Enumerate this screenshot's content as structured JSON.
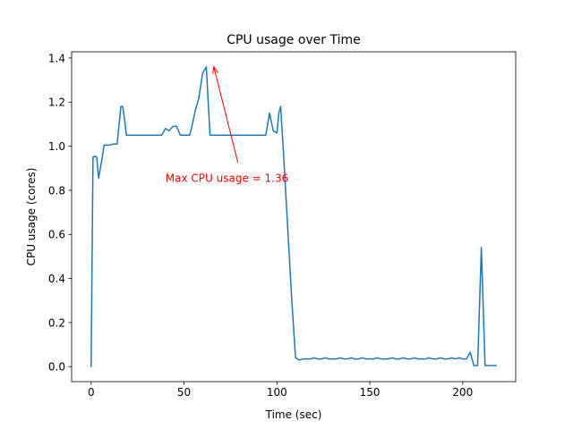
{
  "chart_data": {
    "type": "line",
    "title": "CPU usage over Time",
    "xlabel": "Time (sec)",
    "ylabel": "CPU usage (cores)",
    "xlim": [
      -10.5,
      228.5
    ],
    "ylim": [
      -0.068,
      1.428
    ],
    "xticks": [
      0,
      50,
      100,
      150,
      200
    ],
    "yticks": [
      0.0,
      0.2,
      0.4,
      0.6,
      0.8,
      1.0,
      1.2,
      1.4
    ],
    "ytick_labels": [
      "0.0",
      "0.2",
      "0.4",
      "0.6",
      "0.8",
      "1.0",
      "1.2",
      "1.4"
    ],
    "grid": false,
    "line_color": "#1f77b4",
    "series": [
      {
        "x": [
          0,
          1,
          2,
          3,
          4,
          6,
          7,
          8,
          10,
          12,
          14,
          16,
          17,
          18,
          19,
          20,
          22,
          24,
          26,
          28,
          30,
          32,
          34,
          36,
          38,
          40,
          42,
          44,
          46,
          48,
          50,
          51,
          52,
          53,
          54,
          56,
          58,
          60,
          62,
          63,
          64,
          65,
          66,
          67,
          68,
          70,
          72,
          74,
          76,
          78,
          80,
          82,
          84,
          86,
          88,
          90,
          92,
          94,
          96,
          98,
          100,
          101,
          102,
          104,
          106,
          108,
          110,
          112,
          114,
          116,
          118,
          120,
          122,
          124,
          126,
          128,
          130,
          132,
          134,
          136,
          138,
          140,
          142,
          144,
          146,
          148,
          150,
          152,
          154,
          156,
          158,
          160,
          162,
          164,
          166,
          168,
          170,
          172,
          174,
          176,
          178,
          180,
          182,
          184,
          186,
          188,
          190,
          192,
          194,
          196,
          198,
          200,
          202,
          204,
          206,
          207,
          208,
          210,
          212,
          214,
          216,
          218
        ],
        "y": [
          0.0,
          0.95,
          0.955,
          0.95,
          0.855,
          0.95,
          1.005,
          1.005,
          1.005,
          1.01,
          1.01,
          1.18,
          1.18,
          1.12,
          1.05,
          1.05,
          1.05,
          1.05,
          1.05,
          1.05,
          1.05,
          1.05,
          1.05,
          1.05,
          1.05,
          1.08,
          1.07,
          1.09,
          1.09,
          1.05,
          1.05,
          1.05,
          1.05,
          1.05,
          1.08,
          1.16,
          1.22,
          1.33,
          1.36,
          1.2,
          1.05,
          1.05,
          1.05,
          1.05,
          1.05,
          1.05,
          1.05,
          1.05,
          1.05,
          1.05,
          1.05,
          1.05,
          1.05,
          1.05,
          1.05,
          1.05,
          1.05,
          1.05,
          1.15,
          1.07,
          1.06,
          1.15,
          1.18,
          0.9,
          0.6,
          0.3,
          0.04,
          0.03,
          0.035,
          0.035,
          0.035,
          0.04,
          0.035,
          0.035,
          0.04,
          0.035,
          0.035,
          0.035,
          0.04,
          0.035,
          0.035,
          0.04,
          0.035,
          0.035,
          0.04,
          0.035,
          0.035,
          0.035,
          0.04,
          0.035,
          0.035,
          0.035,
          0.04,
          0.035,
          0.035,
          0.04,
          0.035,
          0.035,
          0.04,
          0.035,
          0.035,
          0.035,
          0.04,
          0.035,
          0.035,
          0.04,
          0.035,
          0.035,
          0.04,
          0.035,
          0.04,
          0.035,
          0.035,
          0.065,
          0.005,
          0.005,
          0.005,
          0.54,
          0.005,
          0.005,
          0.005,
          0.005
        ]
      }
    ],
    "annotation": {
      "text": "Max CPU usage = 1.36",
      "xy": [
        66,
        1.36
      ],
      "xytext": [
        40,
        0.855
      ],
      "arrow_tail": [
        79,
        0.925
      ],
      "color": "#ff0000"
    }
  }
}
